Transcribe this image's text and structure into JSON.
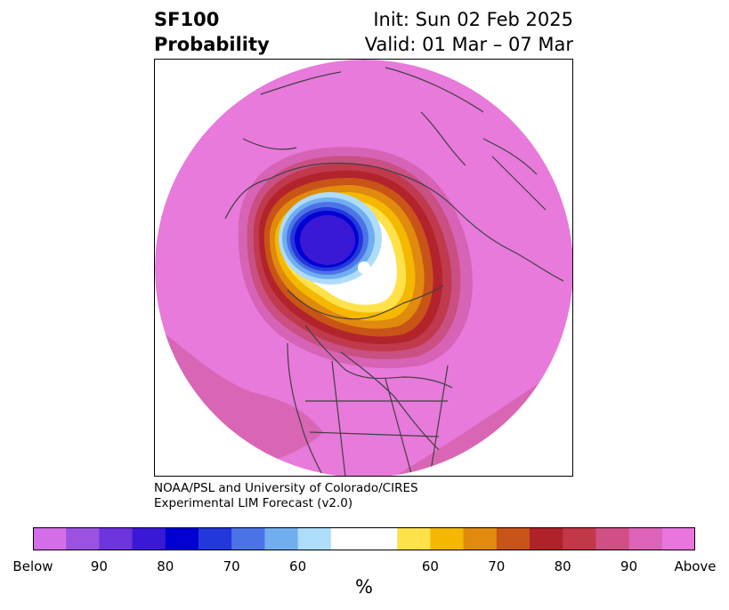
{
  "title": {
    "line1_left": "SF100",
    "line2_left": "Probability",
    "line1_right": "Init: Sun 02 Feb 2025",
    "line2_right": "Valid: 01 Mar – 07 Mar"
  },
  "credit": {
    "line1": "NOAA/PSL and University of Colorado/CIRES",
    "line2": "Experimental LIM Forecast (v2.0)"
  },
  "colorbar": {
    "colors": [
      "#d46ee8",
      "#9b52e0",
      "#6d35db",
      "#3b18d6",
      "#0000d2",
      "#2338dc",
      "#4c73e6",
      "#70aef0",
      "#aedcfb",
      "#ffffff",
      "#ffe14a",
      "#f5b800",
      "#e08a0e",
      "#c85418",
      "#b0222a",
      "#c23848",
      "#d04f84",
      "#dc63b7",
      "#e876de"
    ],
    "labels": [
      "Below",
      "90",
      "80",
      "70",
      "60",
      "60",
      "70",
      "80",
      "90",
      "Above"
    ],
    "units": "%"
  }
}
